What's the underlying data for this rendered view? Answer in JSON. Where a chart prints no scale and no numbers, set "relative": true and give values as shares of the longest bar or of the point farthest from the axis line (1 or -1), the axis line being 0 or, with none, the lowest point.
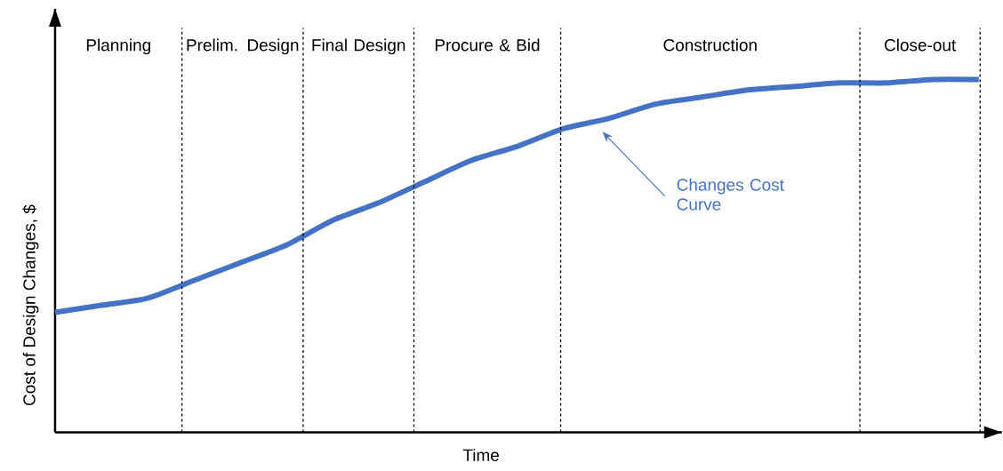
{
  "chart_data": {
    "type": "line",
    "relative": true,
    "xlabel": "Time",
    "ylabel": "Cost of Design Changes, $",
    "categories": [
      null,
      null,
      null,
      null,
      null,
      null,
      null,
      null,
      null,
      null,
      null,
      null,
      null,
      null,
      null,
      null,
      null,
      null,
      null,
      null,
      null
    ],
    "series": [
      {
        "color": "#4472c4",
        "values": [
          0.34,
          0.36,
          0.38,
          0.43,
          0.48,
          0.53,
          0.6,
          0.65,
          0.71,
          0.77,
          0.81,
          0.86,
          0.89,
          0.93,
          0.95,
          0.97,
          0.98,
          0.99,
          0.99,
          1.0,
          1.0
        ]
      }
    ],
    "annotations": [
      "Planning",
      "Prelim. Design",
      "Final Design",
      "Procure & Bid",
      "Construction",
      "Close-out",
      "Changes Cost Curve"
    ],
    "marker": "none",
    "line_style": "solid"
  }
}
